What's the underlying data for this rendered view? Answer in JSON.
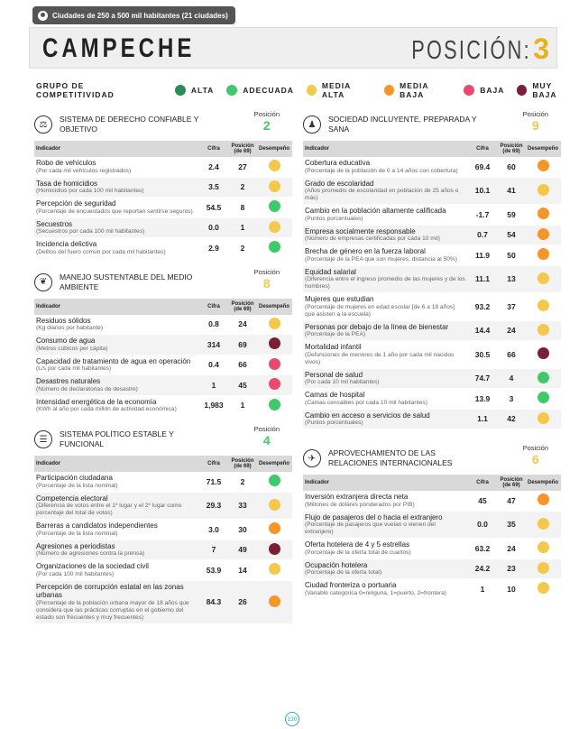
{
  "badge": "Ciudades de 250 a 500 mil habitantes (21 ciudades)",
  "city": "CAMPECHE",
  "position_label": "POSICIÓN:",
  "position_value": "3",
  "legend": {
    "title": "GRUPO DE COMPETITIVIDAD",
    "items": [
      {
        "label": "ALTA",
        "color": "#2e8b57"
      },
      {
        "label": "ADECUADA",
        "color": "#40c96a"
      },
      {
        "label": "MEDIA ALTA",
        "color": "#f2c94c"
      },
      {
        "label": "MEDIA BAJA",
        "color": "#f5962a"
      },
      {
        "label": "BAJA",
        "color": "#e84a6f"
      },
      {
        "label": "MUY BAJA",
        "color": "#7a1f36"
      }
    ]
  },
  "table_headers": {
    "indicador": "Indicador",
    "cifra": "Cifra",
    "posicion": "Posición (de 69)",
    "desempeno": "Desempeño"
  },
  "position_word": "Posición",
  "left_sections": [
    {
      "icon": "scales-icon",
      "glyph": "⚖",
      "title": "SISTEMA DE DERECHO CONFIABLE Y OBJETIVO",
      "pos": "2",
      "pos_color": "#40c96a",
      "rows": [
        {
          "name": "Robo de vehículos",
          "desc": "(Por cada mil vehículos registrados)",
          "value": "2.4",
          "pos": "27",
          "color": "#f2c94c"
        },
        {
          "name": "Tasa de homicidios",
          "desc": "(Homicidios por cada 100 mil habitantes)",
          "value": "3.5",
          "pos": "2",
          "color": "#f2c94c"
        },
        {
          "name": "Percepción de seguridad",
          "desc": "(Porcentaje de encuestados que reportan sentirse seguros)",
          "value": "54.5",
          "pos": "8",
          "color": "#40c96a"
        },
        {
          "name": "Secuestros",
          "desc": "(Secuestros por cada 100 mil habitantes)",
          "value": "0.0",
          "pos": "1",
          "color": "#f2c94c"
        },
        {
          "name": "Incidencia delictiva",
          "desc": "(Delitos del fuero común por cada mil habitantes)",
          "value": "2.9",
          "pos": "2",
          "color": "#40c96a"
        }
      ]
    },
    {
      "icon": "leaf-icon",
      "glyph": "❦",
      "title": "MANEJO SUSTENTABLE DEL MEDIO AMBIENTE",
      "pos": "8",
      "pos_color": "#f2c94c",
      "rows": [
        {
          "name": "Residuos sólidos",
          "desc": "(Kg diarios por habitante)",
          "value": "0.8",
          "pos": "24",
          "color": "#f2c94c"
        },
        {
          "name": "Consumo de agua",
          "desc": "(Metros cúbicos per cápita)",
          "value": "314",
          "pos": "69",
          "color": "#7a1f36"
        },
        {
          "name": "Capacidad de tratamiento de agua en operación",
          "desc": "(L/s por cada mil habitantes)",
          "value": "0.4",
          "pos": "66",
          "color": "#e84a6f"
        },
        {
          "name": "Desastres naturales",
          "desc": "(Número de declaratorias de desastre)",
          "value": "1",
          "pos": "45",
          "color": "#e84a6f"
        },
        {
          "name": "Intensidad energética de la economía",
          "desc": "(KWh al año por cada millón de actividad económica)",
          "value": "1,983",
          "pos": "1",
          "color": "#40c96a"
        }
      ]
    },
    {
      "icon": "list-icon",
      "glyph": "☰",
      "title": "SISTEMA POLÍTICO ESTABLE Y FUNCIONAL",
      "pos": "4",
      "pos_color": "#40c96a",
      "rows": [
        {
          "name": "Participación ciudadana",
          "desc": "(Porcentaje de la lista nominal)",
          "value": "71.5",
          "pos": "2",
          "color": "#40c96a"
        },
        {
          "name": "Competencia electoral",
          "desc": "(Diferencia de votos entre el 1º lugar y el 2º lugar como porcentaje del total de votos)",
          "value": "29.3",
          "pos": "33",
          "color": "#f2c94c"
        },
        {
          "name": "Barreras a candidatos independientes",
          "desc": "(Porcentaje de la lista nominal)",
          "value": "3.0",
          "pos": "30",
          "color": "#f5962a"
        },
        {
          "name": "Agresiones a periodistas",
          "desc": "(Número de agresiones contra la prensa)",
          "value": "7",
          "pos": "49",
          "color": "#7a1f36"
        },
        {
          "name": "Organizaciones de la sociedad civil",
          "desc": "(Por cada 100 mil habitantes)",
          "value": "53.9",
          "pos": "14",
          "color": "#f2c94c"
        },
        {
          "name": "Percepción de corrupción estatal en las zonas urbanas",
          "desc": "(Porcentaje de la población urbana mayor de 18 años que considera que las prácticas corruptas en el gobierno del estado son frecuentes y muy frecuentes)",
          "value": "84.3",
          "pos": "26",
          "color": "#f5962a"
        }
      ]
    }
  ],
  "right_sections": [
    {
      "icon": "people-icon",
      "glyph": "♟",
      "title": "SOCIEDAD INCLUYENTE, PREPARADA Y SANA",
      "pos": "9",
      "pos_color": "#f2c94c",
      "rows": [
        {
          "name": "Cobertura educativa",
          "desc": "(Porcentaje de la población de 0 a 14 años con cobertura)",
          "value": "69.4",
          "pos": "60",
          "color": "#f5962a"
        },
        {
          "name": "Grado de escolaridad",
          "desc": "(Años promedio de escolaridad en población de 25 años o más)",
          "value": "10.1",
          "pos": "41",
          "color": "#f2c94c"
        },
        {
          "name": "Cambio en la población altamente calificada",
          "desc": "(Puntos porcentuales)",
          "value": "-1.7",
          "pos": "59",
          "color": "#f5962a"
        },
        {
          "name": "Empresa socialmente responsable",
          "desc": "(Número de empresas certificadas por cada 10 mil)",
          "value": "0.7",
          "pos": "54",
          "color": "#f5962a"
        },
        {
          "name": "Brecha de género en la fuerza laboral",
          "desc": "(Porcentaje de la PEA que son mujeres, distancia al 50%)",
          "value": "11.9",
          "pos": "50",
          "color": "#f5962a"
        },
        {
          "name": "Equidad salarial",
          "desc": "(Diferencia entre el ingreso promedio de las mujeres y de los hombres)",
          "value": "11.1",
          "pos": "13",
          "color": "#f2c94c"
        },
        {
          "name": "Mujeres que estudian",
          "desc": "(Porcentaje de mujeres en edad escolar [de 6 a 18 años] que asisten a la escuela)",
          "value": "93.2",
          "pos": "37",
          "color": "#f2c94c"
        },
        {
          "name": "Personas por debajo de la línea de bienestar",
          "desc": "(Porcentaje de la PEA)",
          "value": "14.4",
          "pos": "24",
          "color": "#f2c94c"
        },
        {
          "name": "Mortalidad infantil",
          "desc": "(Defunciones de menores de 1 año por cada mil nacidos vivos)",
          "value": "30.5",
          "pos": "66",
          "color": "#7a1f36"
        },
        {
          "name": "Personal de salud",
          "desc": "(Por cada 10 mil habitantes)",
          "value": "74.7",
          "pos": "4",
          "color": "#40c96a"
        },
        {
          "name": "Camas de hospital",
          "desc": "(Camas censables por cada 10 mil habitantes)",
          "value": "13.9",
          "pos": "3",
          "color": "#40c96a"
        },
        {
          "name": "Cambio en acceso a servicios de salud",
          "desc": "(Puntos porcentuales)",
          "value": "1.1",
          "pos": "42",
          "color": "#f2c94c"
        }
      ]
    },
    {
      "icon": "plane-icon",
      "glyph": "✈",
      "title": "APROVECHAMIENTO DE LAS RELACIONES INTERNACIONALES",
      "pos": "6",
      "pos_color": "#f2c94c",
      "rows": [
        {
          "name": "Inversión extranjera directa neta",
          "desc": "(Millones de dólares ponderados por PIB)",
          "value": "45",
          "pos": "47",
          "color": "#f5962a"
        },
        {
          "name": "Flujo de pasajeros del o hacia el extranjero",
          "desc": "(Porcentaje de pasajeros que vuelan o vienen del extranjero)",
          "value": "0.0",
          "pos": "35",
          "color": "#f2c94c"
        },
        {
          "name": "Oferta hotelera de 4 y 5 estrellas",
          "desc": "(Porcentaje de la oferta total de cuartos)",
          "value": "63.2",
          "pos": "24",
          "color": "#f2c94c"
        },
        {
          "name": "Ocupación hotelera",
          "desc": "(Porcentaje de la oferta total)",
          "value": "24.2",
          "pos": "23",
          "color": "#f2c94c"
        },
        {
          "name": "Ciudad fronteriza o portuaria",
          "desc": "(Variable categórica 0=ninguna, 1=puerto, 2=frontera)",
          "value": "1",
          "pos": "10",
          "color": "#f2c94c"
        }
      ]
    }
  ],
  "page_number": "130"
}
